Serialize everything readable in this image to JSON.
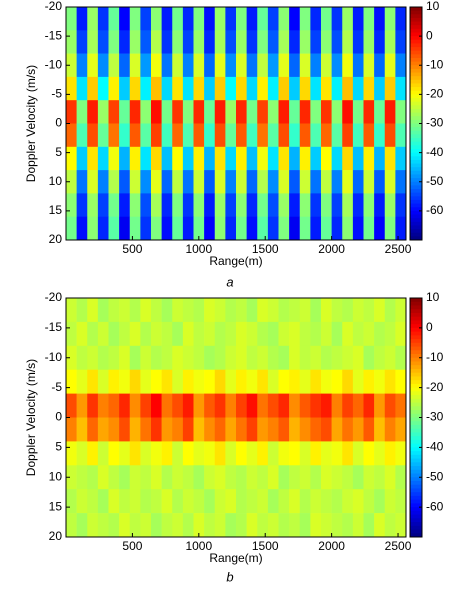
{
  "chart_data": [
    {
      "type": "heatmap",
      "caption": "a",
      "xlabel": "Range(m)",
      "ylabel": "Doppler Velocity (m/s)",
      "colormap": "jet",
      "x": [
        40,
        120,
        200,
        280,
        360,
        440,
        520,
        600,
        680,
        760,
        840,
        920,
        1000,
        1080,
        1160,
        1240,
        1320,
        1400,
        1480,
        1560,
        1640,
        1720,
        1800,
        1880,
        1960,
        2040,
        2120,
        2200,
        2280,
        2360,
        2440,
        2520
      ],
      "y": [
        -18,
        -14,
        -10,
        -6,
        -2,
        2,
        6,
        10,
        14,
        18
      ],
      "z": [
        [
          -30,
          -58,
          -28,
          -56,
          -32,
          -60,
          -30,
          -55,
          -29,
          -58,
          -31,
          -57,
          -30,
          -59,
          -28,
          -56,
          -30,
          -58,
          -32,
          -55,
          -29,
          -60,
          -30,
          -57,
          -31,
          -56,
          -28,
          -58,
          -30,
          -59,
          -29,
          -57
        ],
        [
          -28,
          -55,
          -27,
          -54,
          -30,
          -57,
          -28,
          -53,
          -26,
          -56,
          -29,
          -55,
          -28,
          -57,
          -27,
          -54,
          -28,
          -56,
          -30,
          -53,
          -27,
          -57,
          -28,
          -55,
          -29,
          -54,
          -26,
          -56,
          -28,
          -57,
          -27,
          -55
        ],
        [
          -24,
          -50,
          -22,
          -49,
          -25,
          -52,
          -23,
          -48,
          -21,
          -51,
          -24,
          -50,
          -23,
          -52,
          -22,
          -49,
          -23,
          -51,
          -25,
          -48,
          -22,
          -52,
          -23,
          -50,
          -24,
          -49,
          -21,
          -51,
          -23,
          -52,
          -22,
          -50
        ],
        [
          -18,
          -42,
          -16,
          -40,
          -19,
          -44,
          -17,
          -41,
          -15,
          -43,
          -18,
          -42,
          -17,
          -44,
          -16,
          -40,
          -17,
          -43,
          -19,
          -41,
          -16,
          -44,
          -17,
          -42,
          -18,
          -41,
          -15,
          -43,
          -17,
          -44,
          -16,
          -42
        ],
        [
          -4,
          -30,
          -2,
          -28,
          -5,
          -32,
          -3,
          -29,
          -1,
          -31,
          -4,
          -30,
          -3,
          -32,
          -2,
          -28,
          -3,
          -31,
          -5,
          -29,
          -2,
          -32,
          -3,
          -30,
          -4,
          -29,
          -1,
          -31,
          -3,
          -32,
          -2,
          -30
        ],
        [
          -8,
          -34,
          -6,
          -32,
          -9,
          -36,
          -7,
          -33,
          -5,
          -35,
          -8,
          -34,
          -7,
          -36,
          -6,
          -32,
          -7,
          -35,
          -9,
          -33,
          -6,
          -36,
          -7,
          -34,
          -8,
          -33,
          -5,
          -35,
          -7,
          -36,
          -6,
          -34
        ],
        [
          -20,
          -44,
          -18,
          -43,
          -21,
          -46,
          -19,
          -42,
          -17,
          -45,
          -20,
          -44,
          -19,
          -46,
          -18,
          -43,
          -19,
          -45,
          -21,
          -42,
          -18,
          -46,
          -19,
          -44,
          -20,
          -43,
          -17,
          -45,
          -19,
          -46,
          -18,
          -44
        ],
        [
          -25,
          -51,
          -23,
          -50,
          -26,
          -53,
          -24,
          -49,
          -22,
          -52,
          -25,
          -51,
          -24,
          -53,
          -23,
          -50,
          -24,
          -52,
          -26,
          -49,
          -23,
          -53,
          -24,
          -51,
          -25,
          -50,
          -22,
          -52,
          -24,
          -53,
          -23,
          -51
        ],
        [
          -29,
          -56,
          -28,
          -55,
          -31,
          -58,
          -29,
          -54,
          -27,
          -57,
          -30,
          -56,
          -29,
          -58,
          -28,
          -55,
          -29,
          -57,
          -31,
          -54,
          -28,
          -58,
          -29,
          -56,
          -30,
          -55,
          -27,
          -57,
          -29,
          -58,
          -28,
          -56
        ],
        [
          -31,
          -59,
          -29,
          -57,
          -33,
          -61,
          -31,
          -56,
          -30,
          -59,
          -32,
          -58,
          -31,
          -60,
          -29,
          -57,
          -31,
          -59,
          -33,
          -56,
          -30,
          -61,
          -31,
          -58,
          -32,
          -57,
          -29,
          -59,
          -31,
          -60,
          -30,
          -58
        ]
      ],
      "xlim": [
        0,
        2560
      ],
      "ylim": [
        -20,
        20
      ],
      "xticks": [
        500,
        1000,
        1500,
        2000,
        2500
      ],
      "yticks": [
        -20,
        -15,
        -10,
        -5,
        0,
        5,
        10,
        15,
        20
      ],
      "clim": [
        -70,
        10
      ],
      "cticks": [
        10,
        0,
        -10,
        -20,
        -30,
        -40,
        -50,
        -60
      ]
    },
    {
      "type": "heatmap",
      "caption": "b",
      "xlabel": "Range(m)",
      "ylabel": "Doppler Velocity (m/s)",
      "colormap": "jet",
      "x": [
        40,
        120,
        200,
        280,
        360,
        440,
        520,
        600,
        680,
        760,
        840,
        920,
        1000,
        1080,
        1160,
        1240,
        1320,
        1400,
        1480,
        1560,
        1640,
        1720,
        1800,
        1880,
        1960,
        2040,
        2120,
        2200,
        2280,
        2360,
        2440,
        2520
      ],
      "y": [
        -18,
        -14,
        -10,
        -6,
        -2,
        2,
        6,
        10,
        14,
        18
      ],
      "z": [
        [
          -24,
          -26,
          -23,
          -27,
          -25,
          -24,
          -26,
          -23,
          -25,
          -27,
          -24,
          -25,
          -26,
          -23,
          -24,
          -26,
          -25,
          -27,
          -23,
          -24,
          -26,
          -25,
          -24,
          -27,
          -23,
          -25,
          -26,
          -24,
          -25,
          -23,
          -26,
          -24
        ],
        [
          -25,
          -23,
          -26,
          -24,
          -27,
          -25,
          -23,
          -26,
          -24,
          -25,
          -27,
          -23,
          -25,
          -24,
          -26,
          -25,
          -23,
          -24,
          -26,
          -27,
          -24,
          -23,
          -25,
          -26,
          -24,
          -27,
          -23,
          -25,
          -24,
          -26,
          -25,
          -23
        ],
        [
          -23,
          -25,
          -24,
          -26,
          -25,
          -23,
          -27,
          -24,
          -26,
          -25,
          -23,
          -24,
          -25,
          -27,
          -26,
          -24,
          -23,
          -25,
          -24,
          -26,
          -27,
          -23,
          -25,
          -24,
          -26,
          -25,
          -24,
          -23,
          -27,
          -25,
          -24,
          -26
        ],
        [
          -20,
          -22,
          -18,
          -23,
          -19,
          -21,
          -17,
          -22,
          -20,
          -18,
          -23,
          -19,
          -21,
          -20,
          -17,
          -22,
          -19,
          -21,
          -18,
          -23,
          -20,
          -19,
          -22,
          -18,
          -21,
          -20,
          -17,
          -22,
          -19,
          -21,
          -18,
          -20
        ],
        [
          -6,
          -12,
          -4,
          -10,
          -8,
          -3,
          -11,
          -5,
          0,
          -9,
          -6,
          -2,
          -12,
          -7,
          -4,
          -10,
          -5,
          -1,
          -9,
          -6,
          -3,
          -11,
          -7,
          -4,
          -2,
          -10,
          -5,
          -8,
          -3,
          -12,
          -6,
          -9
        ],
        [
          -10,
          -15,
          -8,
          -13,
          -11,
          -6,
          -14,
          -9,
          -4,
          -12,
          -10,
          -5,
          -15,
          -11,
          -8,
          -13,
          -9,
          -5,
          -12,
          -10,
          -7,
          -14,
          -11,
          -8,
          -6,
          -13,
          -9,
          -12,
          -7,
          -15,
          -10,
          -13
        ],
        [
          -21,
          -23,
          -19,
          -24,
          -20,
          -22,
          -18,
          -23,
          -21,
          -19,
          -24,
          -20,
          -22,
          -21,
          -18,
          -23,
          -20,
          -22,
          -19,
          -24,
          -21,
          -20,
          -23,
          -19,
          -22,
          -21,
          -18,
          -23,
          -20,
          -22,
          -19,
          -21
        ],
        [
          -24,
          -25,
          -26,
          -23,
          -25,
          -27,
          -24,
          -25,
          -23,
          -26,
          -24,
          -25,
          -27,
          -24,
          -23,
          -25,
          -26,
          -24,
          -25,
          -23,
          -27,
          -25,
          -24,
          -26,
          -23,
          -24,
          -25,
          -27,
          -24,
          -25,
          -23,
          -26
        ],
        [
          -26,
          -24,
          -25,
          -27,
          -23,
          -25,
          -24,
          -26,
          -25,
          -23,
          -26,
          -24,
          -25,
          -27,
          -24,
          -23,
          -26,
          -25,
          -24,
          -27,
          -25,
          -23,
          -26,
          -24,
          -25,
          -26,
          -24,
          -23,
          -25,
          -27,
          -24,
          -25
        ],
        [
          -25,
          -27,
          -24,
          -25,
          -26,
          -23,
          -25,
          -24,
          -27,
          -25,
          -24,
          -26,
          -23,
          -25,
          -24,
          -27,
          -26,
          -23,
          -25,
          -24,
          -26,
          -25,
          -27,
          -23,
          -24,
          -25,
          -26,
          -24,
          -27,
          -23,
          -25,
          -24
        ]
      ],
      "xlim": [
        0,
        2560
      ],
      "ylim": [
        -20,
        20
      ],
      "xticks": [
        500,
        1000,
        1500,
        2000,
        2500
      ],
      "yticks": [
        -20,
        -15,
        -10,
        -5,
        0,
        5,
        10,
        15,
        20
      ],
      "clim": [
        -70,
        10
      ],
      "cticks": [
        10,
        0,
        -10,
        -20,
        -30,
        -40,
        -50,
        -60
      ]
    }
  ]
}
